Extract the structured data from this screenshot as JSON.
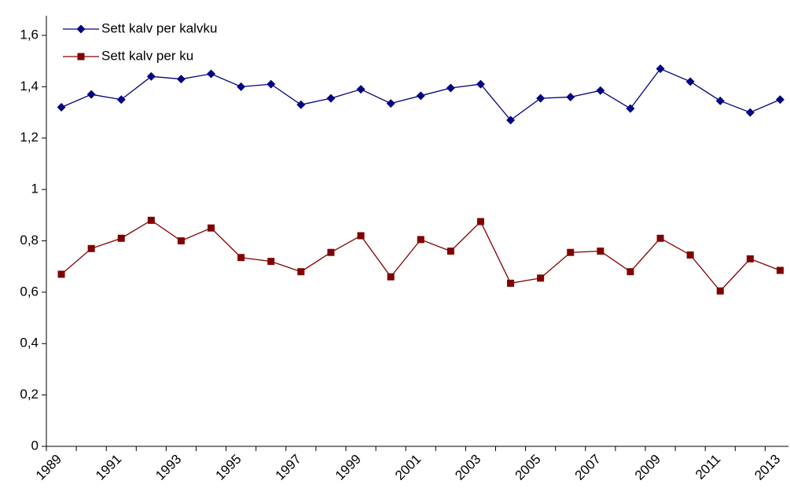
{
  "chart_data": {
    "type": "line",
    "categories": [
      "1989",
      null,
      "1991",
      null,
      "1993",
      null,
      "1995",
      null,
      "1997",
      null,
      "1999",
      null,
      "2001",
      null,
      "2003",
      null,
      "2005",
      null,
      "2007",
      null,
      "2009",
      null,
      "2011",
      null,
      "2013"
    ],
    "series": [
      {
        "name": "Sett kalv per kalvku",
        "color": "#000080",
        "marker": "diamond",
        "values": [
          1.32,
          1.37,
          1.35,
          1.44,
          1.43,
          1.45,
          1.4,
          1.41,
          1.33,
          1.355,
          1.39,
          1.335,
          1.365,
          1.395,
          1.41,
          1.27,
          1.355,
          1.36,
          1.385,
          1.315,
          1.47,
          1.42,
          1.345,
          1.3,
          1.35
        ]
      },
      {
        "name": "Sett kalv per ku",
        "color": "#800000",
        "marker": "square",
        "values": [
          0.67,
          0.77,
          0.81,
          0.88,
          0.8,
          0.85,
          0.735,
          0.72,
          0.68,
          0.755,
          0.82,
          0.66,
          0.805,
          0.76,
          0.875,
          0.635,
          0.655,
          0.755,
          0.76,
          0.68,
          0.81,
          0.745,
          0.605,
          0.73,
          0.685
        ]
      }
    ],
    "ylim": [
      0,
      1.6
    ],
    "yticks": [
      0,
      {
        "value": 0.2,
        "label": "0,2"
      },
      {
        "value": 0.4,
        "label": "0,4"
      },
      {
        "value": 0.6,
        "label": "0,6"
      },
      {
        "value": 0.8,
        "label": "0,8"
      },
      1,
      {
        "value": 1.2,
        "label": "1,2"
      },
      {
        "value": 1.4,
        "label": "1,4"
      },
      {
        "value": 1.6,
        "label": "1,6"
      }
    ],
    "legend": "upper left"
  }
}
